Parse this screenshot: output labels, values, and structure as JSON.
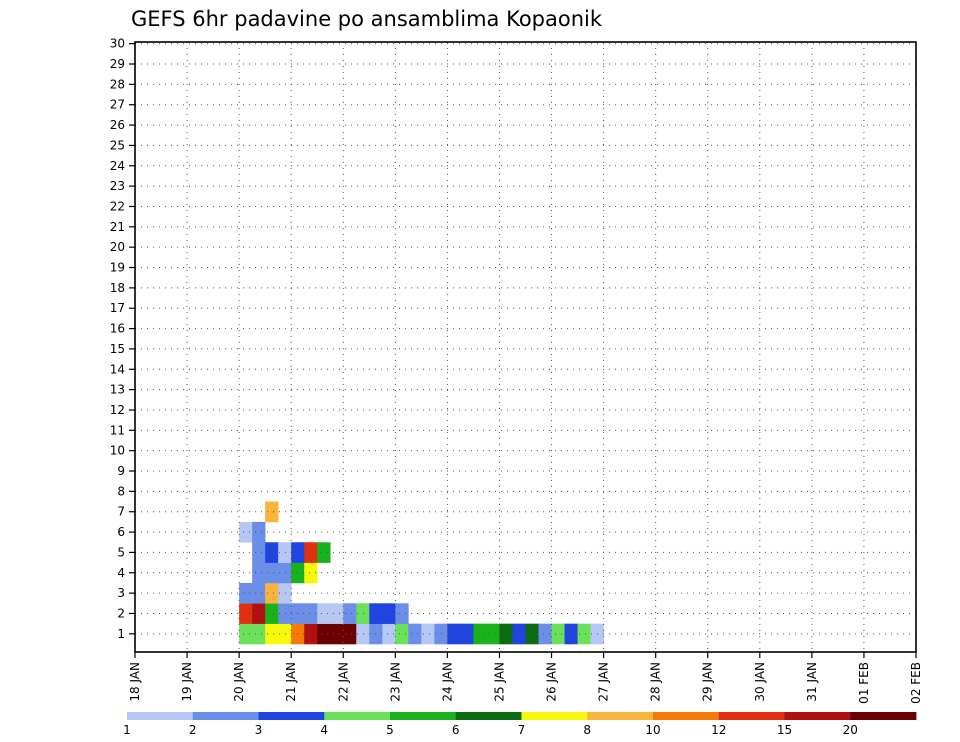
{
  "chart_data": {
    "type": "heatmap",
    "title": "GEFS 6hr padavine po ansamblima Kopaonik",
    "xlabel": "",
    "ylabel": "",
    "x_ticks": [
      "18 JAN",
      "19 JAN",
      "20 JAN",
      "21 JAN",
      "22 JAN",
      "23 JAN",
      "24 JAN",
      "25 JAN",
      "26 JAN",
      "27 JAN",
      "28 JAN",
      "29 JAN",
      "30 JAN",
      "31 JAN",
      "01 FEB",
      "02 FEB"
    ],
    "y_ticks": [
      "1",
      "2",
      "3",
      "4",
      "5",
      "6",
      "7",
      "8",
      "9",
      "10",
      "11",
      "12",
      "13",
      "14",
      "15",
      "16",
      "17",
      "18",
      "19",
      "20",
      "21",
      "22",
      "23",
      "24",
      "25",
      "26",
      "27",
      "28",
      "29",
      "30"
    ],
    "x_range": [
      "18 JAN 00Z",
      "02 FEB 00Z"
    ],
    "time_step_hours": 6,
    "y_range": [
      0,
      30
    ],
    "grid": "dotted",
    "colorbar": {
      "labels": [
        "1",
        "2",
        "3",
        "4",
        "5",
        "6",
        "7",
        "8",
        "10",
        "12",
        "15",
        "20"
      ],
      "colors": [
        "#b7c7f3",
        "#6b8ee8",
        "#1f44e0",
        "#6be05b",
        "#18b21c",
        "#0c6a10",
        "#f8f80c",
        "#fcb33c",
        "#f67a08",
        "#e03010",
        "#b01010",
        "#6a0000"
      ]
    },
    "cell_value_note": "class index 0-11 into colorbar colors; bins start at the first time step shown",
    "rows": [
      {
        "member": 1,
        "start_step": 8,
        "classes": [
          3,
          3,
          6,
          6,
          8,
          10,
          11,
          11,
          11,
          0,
          1,
          0,
          3,
          1,
          0,
          1,
          2,
          2,
          4,
          4,
          5,
          2,
          5,
          1,
          3,
          2,
          3,
          0
        ]
      },
      {
        "member": 2,
        "start_step": 8,
        "classes": [
          9,
          10,
          4,
          1,
          1,
          1,
          0,
          0,
          1,
          3,
          2,
          2,
          1
        ]
      },
      {
        "member": 3,
        "start_step": 8,
        "classes": [
          1,
          1,
          7,
          0
        ]
      },
      {
        "member": 4,
        "start_step": 9,
        "classes": [
          1,
          1,
          1,
          4,
          6
        ]
      },
      {
        "member": 5,
        "start_step": 9,
        "classes": [
          1,
          2,
          0,
          2,
          9,
          4
        ]
      },
      {
        "member": 6,
        "start_step": 8,
        "classes": [
          0,
          1
        ]
      },
      {
        "member": 7,
        "start_step": 10,
        "classes": [
          7
        ]
      }
    ]
  }
}
